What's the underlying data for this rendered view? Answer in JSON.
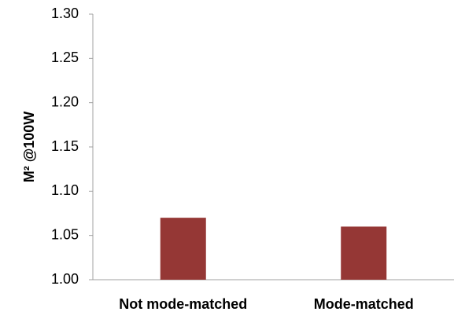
{
  "chart_data": {
    "type": "bar",
    "y_label": "M² @100W",
    "categories": [
      "Not mode-matched",
      "Mode-matched"
    ],
    "values": [
      1.07,
      1.06
    ],
    "color": "#953735",
    "ylim": [
      1.0,
      1.3
    ],
    "yticks": [
      {
        "value": 1.0,
        "label": "1.00"
      },
      1.05,
      {
        "value": 1.1,
        "label": "1.10"
      },
      1.15,
      {
        "value": 1.2,
        "label": "1.20"
      },
      1.25,
      {
        "value": 1.3,
        "label": "1.30"
      }
    ],
    "grid": false
  }
}
